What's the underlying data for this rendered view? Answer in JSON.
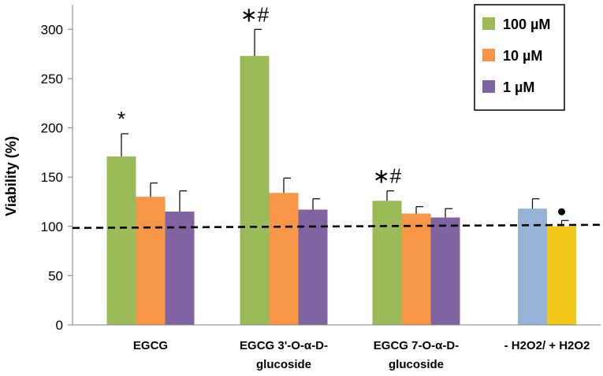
{
  "chart_data": {
    "type": "bar",
    "title": "",
    "xlabel": "",
    "ylabel": "Viability (%)",
    "ylim": [
      0,
      325
    ],
    "yticks": [
      0,
      50,
      100,
      150,
      200,
      250,
      300
    ],
    "reference_line": 100,
    "groups": [
      {
        "label_lines": [
          "EGCG"
        ],
        "bars": [
          {
            "series": "100 µM",
            "value": 171,
            "error": 23,
            "annotation": "*"
          },
          {
            "series": "10 µM",
            "value": 130,
            "error": 14,
            "annotation": ""
          },
          {
            "series": "1 µM",
            "value": 115,
            "error": 21,
            "annotation": ""
          }
        ]
      },
      {
        "label_lines": [
          "EGCG 3'-O-α-D-",
          "glucoside"
        ],
        "bars": [
          {
            "series": "100 µM",
            "value": 273,
            "error": 27,
            "annotation": "∗#"
          },
          {
            "series": "10 µM",
            "value": 134,
            "error": 15,
            "annotation": ""
          },
          {
            "series": "1 µM",
            "value": 117,
            "error": 11,
            "annotation": ""
          }
        ]
      },
      {
        "label_lines": [
          "EGCG 7-O-α-D-",
          "glucoside"
        ],
        "bars": [
          {
            "series": "100 µM",
            "value": 126,
            "error": 10,
            "annotation": "∗#"
          },
          {
            "series": "10 µM",
            "value": 113,
            "error": 7,
            "annotation": ""
          },
          {
            "series": "1 µM",
            "value": 109,
            "error": 9,
            "annotation": ""
          }
        ]
      },
      {
        "label_lines": [
          "- H2O2/ + H2O2"
        ],
        "bars": [
          {
            "series": "- H2O2",
            "value": 118,
            "error": 10,
            "annotation": ""
          },
          {
            "series": "+ H2O2",
            "value": 100,
            "error": 6,
            "annotation": "•"
          }
        ]
      }
    ],
    "series_colors": {
      "100 µM": "#9bbb59",
      "10 µM": "#f79646",
      "1 µM": "#8064a2",
      "- H2O2": "#95b3d7",
      "+ H2O2": "#f2c719"
    },
    "legend": {
      "position": "top-right",
      "entries": [
        {
          "label": "100 µM",
          "color": "#9bbb59"
        },
        {
          "label": "10 µM",
          "color": "#f79646"
        },
        {
          "label": "1 µM",
          "color": "#8064a2"
        }
      ]
    }
  }
}
